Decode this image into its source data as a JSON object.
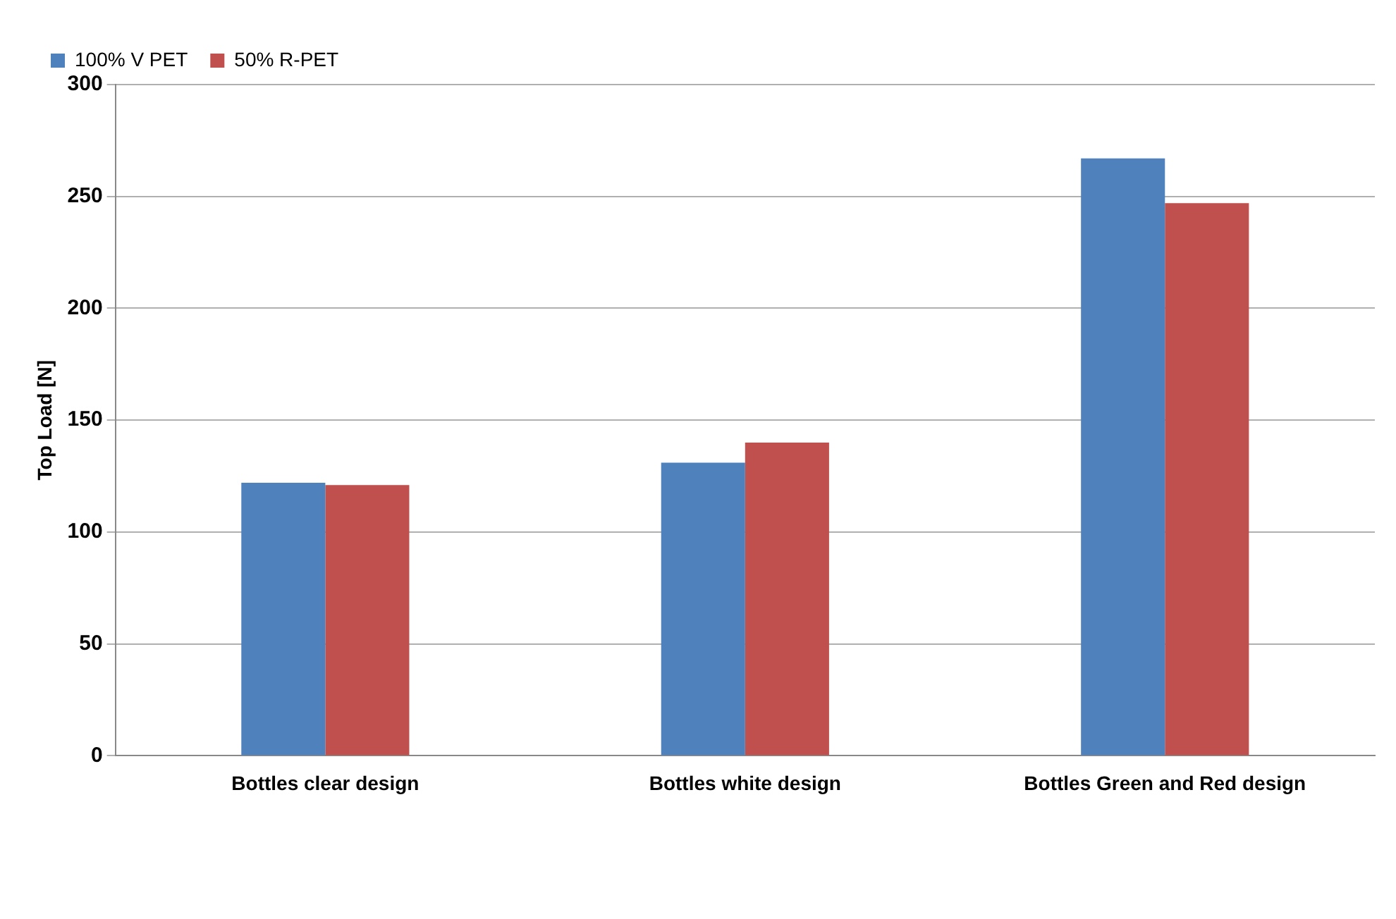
{
  "chart_data": {
    "type": "bar",
    "ylabel": "Top Load [N]",
    "categories": [
      "Bottles clear design",
      "Bottles white design",
      "Bottles Green and Red design"
    ],
    "series": [
      {
        "name": "100% V PET",
        "color": "#4f81bd",
        "values": [
          122,
          131,
          267
        ]
      },
      {
        "name": "50% R-PET",
        "color": "#c0504d",
        "values": [
          121,
          140,
          247
        ]
      }
    ],
    "ylim": [
      0,
      300
    ],
    "yticks": [
      0,
      50,
      100,
      150,
      200,
      250,
      300
    ],
    "grid": "y",
    "legend": "top left"
  }
}
